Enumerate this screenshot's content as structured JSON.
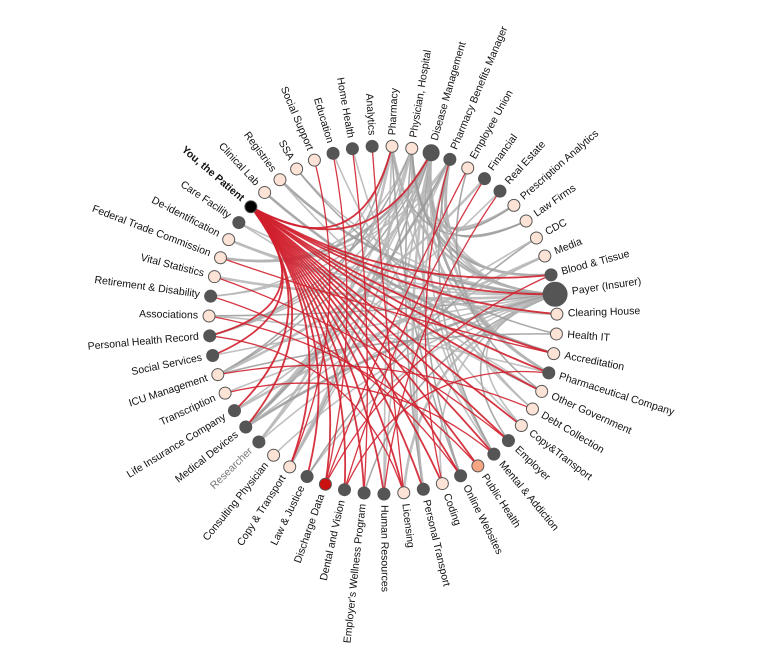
{
  "nodes": [
    {
      "label": "You, the Patient",
      "color": "#000000"
    },
    {
      "label": "Care Facility",
      "color": "#555555"
    },
    {
      "label": "De-identification",
      "color": "#fde3d6"
    },
    {
      "label": "Federal Trade Commission",
      "color": "#fde3d6"
    },
    {
      "label": "Vital Statistics",
      "color": "#fde3d6"
    },
    {
      "label": "Retirement & Disability",
      "color": "#555555"
    },
    {
      "label": "Associations",
      "color": "#fde3d6"
    },
    {
      "label": "Personal Health Record",
      "color": "#555555"
    },
    {
      "label": "Social Services",
      "color": "#555555"
    },
    {
      "label": "ICU Management",
      "color": "#fde3d6"
    },
    {
      "label": "Transcription",
      "color": "#fde3d6"
    },
    {
      "label": "Life Insurance Company",
      "color": "#555555"
    },
    {
      "label": "Medical Devices",
      "color": "#555555"
    },
    {
      "label": "Researcher",
      "color": "#555555"
    },
    {
      "label": "Consulting Physician",
      "color": "#fde3d6"
    },
    {
      "label": "Copy & Transport",
      "color": "#fde3d6"
    },
    {
      "label": "Law & Justice",
      "color": "#555555"
    },
    {
      "label": "Discharge Data",
      "color": "#cc1111"
    },
    {
      "label": "Dental and Vision",
      "color": "#555555"
    },
    {
      "label": "Employer's Wellness Program",
      "color": "#555555"
    },
    {
      "label": "Human Resources",
      "color": "#555555"
    },
    {
      "label": "Licensing",
      "color": "#fde3d6"
    },
    {
      "label": "Personal Transport",
      "color": "#555555"
    },
    {
      "label": "Coding",
      "color": "#fde3d6"
    },
    {
      "label": "Online Websites",
      "color": "#555555"
    },
    {
      "label": "Public Health",
      "color": "#f4a582"
    },
    {
      "label": "Mental & Addiction",
      "color": "#555555"
    },
    {
      "label": "Employer",
      "color": "#555555"
    },
    {
      "label": "Copy&Transport",
      "color": "#fde3d6"
    },
    {
      "label": "Debt Collection",
      "color": "#fde3d6"
    },
    {
      "label": "Other Government",
      "color": "#fde3d6"
    },
    {
      "label": "Pharmaceutical Company",
      "color": "#555555"
    },
    {
      "label": "Accreditation",
      "color": "#fde3d6"
    },
    {
      "label": "Health IT",
      "color": "#fde3d6"
    },
    {
      "label": "Clearing House",
      "color": "#fde3d6"
    },
    {
      "label": "Payer (Insurer)",
      "color": "#555555"
    },
    {
      "label": "Blood & Tissue",
      "color": "#555555"
    },
    {
      "label": "Media",
      "color": "#fde3d6"
    },
    {
      "label": "CDC",
      "color": "#fde3d6"
    },
    {
      "label": "Law Firms",
      "color": "#fde3d6"
    },
    {
      "label": "Prescription Analytics",
      "color": "#fde3d6"
    },
    {
      "label": "Real Estate",
      "color": "#555555"
    },
    {
      "label": "Financial",
      "color": "#555555"
    },
    {
      "label": "Employee Union",
      "color": "#fde3d6"
    },
    {
      "label": "Pharmacy Benefits Manager",
      "color": "#555555"
    },
    {
      "label": "Disease Management",
      "color": "#555555"
    },
    {
      "label": "Physician, Hospital",
      "color": "#fde3d6"
    },
    {
      "label": "Pharmacy",
      "color": "#fde3d6"
    },
    {
      "label": "Analytics",
      "color": "#555555"
    },
    {
      "label": "Home Health",
      "color": "#555555"
    },
    {
      "label": "Education",
      "color": "#555555"
    },
    {
      "label": "Social Support",
      "color": "#fde3d6"
    },
    {
      "label": "SSA",
      "color": "#fde3d6"
    },
    {
      "label": "Registries",
      "color": "#fde3d6"
    },
    {
      "label": "Clinical Lab",
      "color": "#fde3d6"
    }
  ]
}
